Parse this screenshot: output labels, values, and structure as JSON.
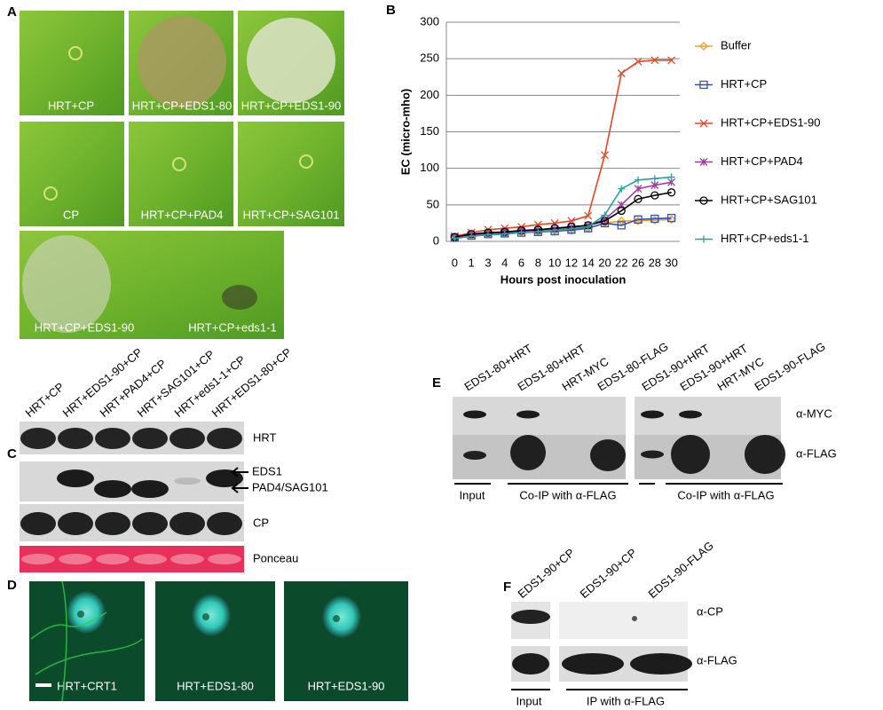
{
  "panel_a": {
    "label": "A",
    "captions": [
      "HRT+CP",
      "HRT+CP+EDS1-80",
      "HRT+CP+EDS1-90",
      "CP",
      "HRT+CP+PAD4",
      "HRT+CP+SAG101",
      "HRT+CP+EDS1-90",
      "HRT+CP+eds1-1"
    ]
  },
  "chart_data": {
    "type": "line",
    "label": "B",
    "x_label": "Hours  post inoculation",
    "y_label": "EC (micro-mho)",
    "categories": [
      0,
      1,
      3,
      4,
      6,
      8,
      10,
      12,
      14,
      20,
      22,
      26,
      28,
      30
    ],
    "ylim": [
      0,
      300
    ],
    "yticks": [
      0,
      50,
      100,
      150,
      200,
      250,
      300
    ],
    "grid": true,
    "series": [
      {
        "name": "Buffer",
        "color": "#f0a030",
        "marker": "diamond",
        "values": [
          5,
          8,
          10,
          11,
          12,
          13,
          14,
          15,
          18,
          25,
          28,
          28,
          29,
          30
        ]
      },
      {
        "name": "HRT+CP",
        "color": "#3050c0",
        "marker": "square",
        "values": [
          5,
          8,
          10,
          11,
          12,
          13,
          14,
          16,
          18,
          25,
          22,
          30,
          31,
          32
        ]
      },
      {
        "name": "HRT+CP+EDS1-90",
        "color": "#e04828",
        "marker": "x",
        "values": [
          7,
          12,
          16,
          18,
          20,
          23,
          25,
          28,
          35,
          118,
          230,
          246,
          248,
          248
        ]
      },
      {
        "name": "HRT+CP+PAD4",
        "color": "#a03ca0",
        "marker": "star",
        "values": [
          5,
          9,
          11,
          12,
          14,
          15,
          17,
          19,
          22,
          30,
          50,
          72,
          77,
          81
        ]
      },
      {
        "name": "HRT+CP+SAG101",
        "color": "#000000",
        "marker": "circle",
        "values": [
          6,
          10,
          12,
          13,
          15,
          16,
          18,
          20,
          22,
          28,
          42,
          58,
          63,
          67
        ]
      },
      {
        "name": "HRT+CP+eds1-1",
        "color": "#28a0a0",
        "marker": "plus",
        "values": [
          4,
          7,
          9,
          10,
          12,
          13,
          15,
          17,
          20,
          36,
          72,
          84,
          86,
          88
        ]
      }
    ]
  },
  "panel_c": {
    "label": "C",
    "lanes": [
      "HRT+CP",
      "HRT+EDS1-90+CP",
      "HRT+PAD4+CP",
      "HRT+SAG101+CP",
      "HRT+eds1-1+CP",
      "HRT+EDS1-80+CP"
    ],
    "rows": [
      "HRT",
      "EDS1",
      "PAD4/SAG101",
      "CP",
      "Ponceau"
    ]
  },
  "panel_d": {
    "label": "D",
    "captions": [
      "HRT+CRT1",
      "HRT+EDS1-80",
      "HRT+EDS1-90"
    ]
  },
  "panel_e": {
    "label": "E",
    "lanes": [
      "EDS1-80+HRT",
      "EDS1-80+HRT",
      "HRT-MYC",
      "EDS1-80-FLAG",
      "EDS1-90+HRT",
      "EDS1-90+HRT",
      "HRT-MYC",
      "EDS1-90-FLAG"
    ],
    "rows": [
      "α-MYC",
      "α-FLAG"
    ],
    "groups": [
      "Input",
      "Co-IP with α-FLAG",
      "Co-IP with α-FLAG"
    ]
  },
  "panel_f": {
    "label": "F",
    "lanes": [
      "EDS1-90+CP",
      "EDS1-90+CP",
      "EDS1-90-FLAG"
    ],
    "rows": [
      "α-CP",
      "α-FLAG"
    ],
    "groups": [
      "Input",
      "IP with α-FLAG"
    ]
  }
}
